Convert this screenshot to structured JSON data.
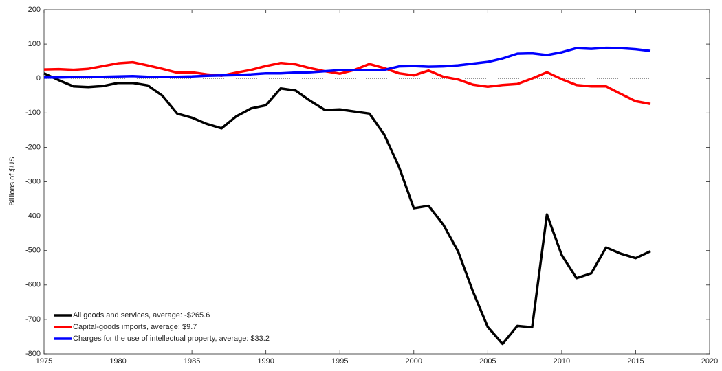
{
  "chart_data": {
    "type": "line",
    "y_label": "Billions of $US",
    "x": [
      1975,
      1976,
      1977,
      1978,
      1979,
      1980,
      1981,
      1982,
      1983,
      1984,
      1985,
      1986,
      1987,
      1988,
      1989,
      1990,
      1991,
      1992,
      1993,
      1994,
      1995,
      1996,
      1997,
      1998,
      1999,
      2000,
      2001,
      2002,
      2003,
      2004,
      2005,
      2006,
      2007,
      2008,
      2009,
      2010,
      2011,
      2012,
      2013,
      2014,
      2015,
      2016
    ],
    "series": [
      {
        "name": "All goods and services, average: -$265.6",
        "color": "#000000",
        "values": [
          15,
          -5,
          -23,
          -25,
          -22,
          -13,
          -13,
          -20,
          -50,
          -102,
          -114,
          -132,
          -145,
          -110,
          -87,
          -78,
          -29,
          -35,
          -65,
          -92,
          -90,
          -96,
          -102,
          -163,
          -257,
          -377,
          -370,
          -425,
          -503,
          -619,
          -722,
          -771,
          -719,
          -723,
          -395,
          -513,
          -580,
          -566,
          -491,
          -509,
          -522,
          -502
        ]
      },
      {
        "name": "Capital-goods imports, average: $9.7",
        "color": "#ff0000",
        "values": [
          26,
          27,
          25,
          28,
          36,
          44,
          47,
          38,
          28,
          17,
          18,
          12,
          8,
          17,
          25,
          36,
          45,
          41,
          30,
          21,
          14,
          25,
          42,
          30,
          15,
          9,
          23,
          5,
          -3,
          -18,
          -24,
          -19,
          -16,
          0,
          18,
          -2,
          -19,
          -23,
          -23,
          -45,
          -66,
          -74
        ]
      },
      {
        "name": "Charges for the use of intellectual property, average: $33.2",
        "color": "#0000ff",
        "values": [
          3,
          3,
          4,
          5,
          5,
          6,
          7,
          5,
          5,
          5,
          6,
          8,
          9,
          10,
          12,
          15,
          15,
          17,
          18,
          21,
          24,
          24,
          24,
          25,
          35,
          36,
          34,
          35,
          38,
          43,
          48,
          58,
          72,
          73,
          68,
          76,
          88,
          86,
          89,
          88,
          85,
          80
        ]
      }
    ],
    "xlim": [
      1975,
      2020
    ],
    "xticks": [
      1975,
      1980,
      1985,
      1990,
      1995,
      2000,
      2005,
      2010,
      2015,
      2020
    ],
    "ylim": [
      -800,
      200
    ],
    "yticks": [
      -800,
      -700,
      -600,
      -500,
      -400,
      -300,
      -200,
      -100,
      0,
      100,
      200
    ],
    "zero_line": true,
    "legend": "lower-left"
  }
}
